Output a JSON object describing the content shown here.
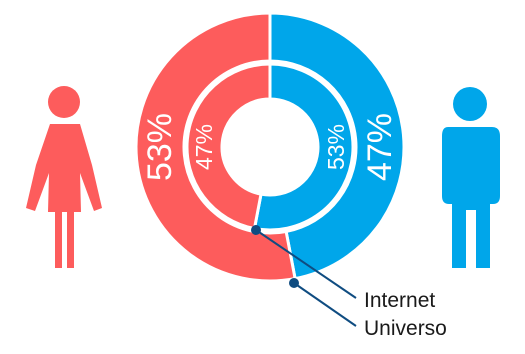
{
  "chart_data": {
    "type": "pie",
    "rings": [
      {
        "name": "Universo",
        "slices": [
          {
            "label": "Femenino",
            "value": 53,
            "display": "53%",
            "color": "#fd5c5c"
          },
          {
            "label": "Masculino",
            "value": 47,
            "display": "47%",
            "color": "#00a6ea"
          }
        ]
      },
      {
        "name": "Internet",
        "slices": [
          {
            "label": "Femenino",
            "value": 47,
            "display": "47%",
            "color": "#fd5c5c"
          },
          {
            "label": "Masculino",
            "value": 53,
            "display": "53%",
            "color": "#00a6ea"
          }
        ]
      }
    ],
    "annotations": [
      "Internet",
      "Universo"
    ]
  },
  "icons": {
    "female": {
      "name": "female-icon",
      "color": "#fd5c5c"
    },
    "male": {
      "name": "male-icon",
      "color": "#00a6ea"
    }
  },
  "callout_color": "#0f4c81"
}
